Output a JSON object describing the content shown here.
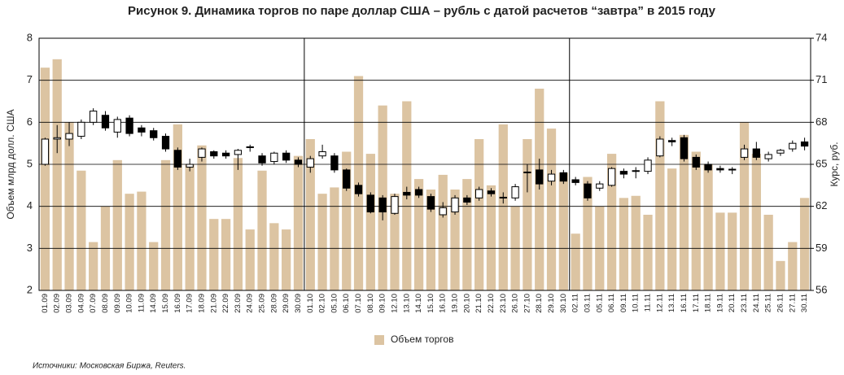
{
  "chart_data": {
    "type": "bar-candlestick",
    "title": "Рисунок 9. Динамика торгов по паре доллар США – рубль с датой расчетов “завтра” в 2015 году",
    "y_label": "Объем млрд долл. США",
    "y2_label": "Курс, руб.",
    "source": "Источники: Московская Биржа, Reuters.",
    "categories": [
      "01.09",
      "02.09",
      "03.09",
      "04.09",
      "07.09",
      "08.09",
      "09.09",
      "10.09",
      "11.09",
      "14.09",
      "15.09",
      "16.09",
      "17.09",
      "18.09",
      "21.09",
      "22.09",
      "23.09",
      "24.09",
      "25.09",
      "28.09",
      "29.09",
      "30.09",
      "01.10",
      "02.10",
      "05.10",
      "06.10",
      "07.10",
      "08.10",
      "09.10",
      "12.10",
      "13.10",
      "14.10",
      "15.10",
      "16.10",
      "19.10",
      "20.10",
      "21.10",
      "22.10",
      "23.10",
      "26.10",
      "27.10",
      "28.10",
      "29.10",
      "30.10",
      "02.11",
      "03.11",
      "05.11",
      "06.11",
      "09.11",
      "10.11",
      "11.11",
      "12.11",
      "13.11",
      "16.11",
      "17.11",
      "18.11",
      "19.11",
      "20.11",
      "23.11",
      "24.11",
      "25.11",
      "26.11",
      "27.11",
      "30.11"
    ],
    "series": [
      {
        "name": "Объем торгов",
        "color": "#dcc4a2",
        "values": [
          7.3,
          7.5,
          6.0,
          4.85,
          3.15,
          4.0,
          5.1,
          4.3,
          4.35,
          3.15,
          5.1,
          5.95,
          5.0,
          5.45,
          3.7,
          3.7,
          5.15,
          3.45,
          4.85,
          3.6,
          3.45,
          5.2,
          5.6,
          4.3,
          4.45,
          5.3,
          7.1,
          5.25,
          6.4,
          4.3,
          6.5,
          4.65,
          4.4,
          4.75,
          4.4,
          4.65,
          5.6,
          4.5,
          5.95,
          4.0,
          5.6,
          6.8,
          5.85,
          4.8,
          3.35,
          4.7,
          4.0,
          5.25,
          4.2,
          4.25,
          3.8,
          6.5,
          4.9,
          5.7,
          5.3,
          5.0,
          3.85,
          3.85,
          6.0,
          5.25,
          3.8,
          2.7,
          3.15,
          4.2
        ]
      }
    ],
    "candles": {
      "axis": "y2",
      "up_color": "#ffffff",
      "down_color": "#000000",
      "open": [
        65.0,
        66.8,
        66.8,
        67.0,
        68.0,
        68.5,
        67.3,
        68.3,
        67.6,
        67.4,
        67.0,
        66.0,
        64.8,
        65.5,
        65.9,
        65.8,
        65.7,
        66.2,
        65.6,
        65.2,
        65.8,
        65.3,
        64.8,
        65.6,
        65.6,
        64.6,
        63.5,
        62.8,
        62.6,
        61.5,
        63.0,
        63.2,
        62.7,
        61.4,
        61.6,
        62.6,
        62.6,
        63.1,
        62.6,
        62.6,
        64.4,
        64.6,
        63.8,
        64.4,
        63.9,
        63.6,
        63.3,
        63.5,
        64.5,
        64.5,
        64.5,
        65.6,
        66.7,
        66.9,
        65.5,
        65.0,
        64.7,
        64.6,
        65.5,
        66.1,
        65.4,
        65.8,
        66.1,
        66.6
      ],
      "high": [
        66.9,
        67.8,
        68.0,
        68.2,
        69.0,
        68.8,
        68.4,
        68.5,
        67.8,
        67.6,
        67.2,
        66.2,
        65.4,
        66.2,
        66.0,
        66.0,
        66.1,
        66.4,
        65.8,
        65.9,
        66.0,
        65.5,
        65.6,
        66.4,
        65.8,
        64.7,
        63.7,
        63.0,
        62.8,
        62.9,
        63.4,
        63.4,
        62.9,
        62.3,
        62.8,
        62.8,
        63.4,
        63.3,
        63.0,
        63.6,
        65.0,
        65.4,
        64.6,
        64.6,
        64.1,
        63.8,
        63.8,
        64.8,
        64.7,
        64.8,
        65.5,
        67.0,
        66.9,
        67.1,
        65.7,
        65.2,
        64.9,
        64.8,
        66.4,
        66.6,
        65.9,
        66.1,
        66.7,
        66.9
      ],
      "low": [
        64.9,
        65.8,
        66.3,
        66.8,
        67.8,
        67.4,
        66.9,
        67.0,
        67.0,
        66.7,
        65.9,
        64.6,
        64.5,
        65.2,
        65.4,
        65.4,
        64.6,
        65.9,
        64.9,
        65.0,
        65.1,
        64.8,
        64.4,
        65.4,
        64.4,
        63.1,
        62.7,
        61.5,
        61.0,
        61.4,
        62.5,
        62.6,
        61.6,
        61.2,
        61.4,
        62.1,
        62.4,
        62.7,
        62.2,
        62.4,
        63.0,
        63.2,
        63.5,
        63.6,
        63.5,
        62.4,
        63.1,
        63.4,
        64.0,
        64.0,
        64.3,
        65.5,
        66.3,
        65.2,
        64.6,
        64.4,
        64.4,
        64.3,
        65.3,
        65.3,
        65.2,
        65.6,
        65.9,
        66.0
      ],
      "close": [
        66.8,
        66.9,
        67.2,
        68.0,
        68.8,
        67.6,
        68.2,
        67.2,
        67.3,
        66.9,
        66.1,
        64.8,
        65.0,
        66.1,
        65.6,
        65.6,
        66.0,
        66.25,
        65.1,
        65.8,
        65.3,
        65.0,
        65.4,
        65.9,
        64.6,
        63.3,
        62.9,
        61.6,
        61.6,
        62.7,
        62.8,
        62.8,
        61.8,
        61.9,
        62.6,
        62.3,
        63.2,
        62.9,
        62.65,
        63.4,
        64.45,
        63.6,
        64.3,
        63.8,
        63.7,
        62.6,
        63.6,
        64.7,
        64.3,
        64.55,
        65.3,
        66.8,
        66.6,
        65.4,
        64.8,
        64.6,
        64.6,
        64.65,
        66.1,
        65.5,
        65.7,
        66.0,
        66.5,
        66.3
      ]
    },
    "ylim": [
      2,
      8
    ],
    "yticks": [
      2,
      3,
      4,
      5,
      6,
      7,
      8
    ],
    "y2lim": [
      56,
      74
    ],
    "y2ticks": [
      56,
      59,
      62,
      65,
      68,
      71,
      74
    ],
    "grid": true,
    "legend": "bottom"
  }
}
